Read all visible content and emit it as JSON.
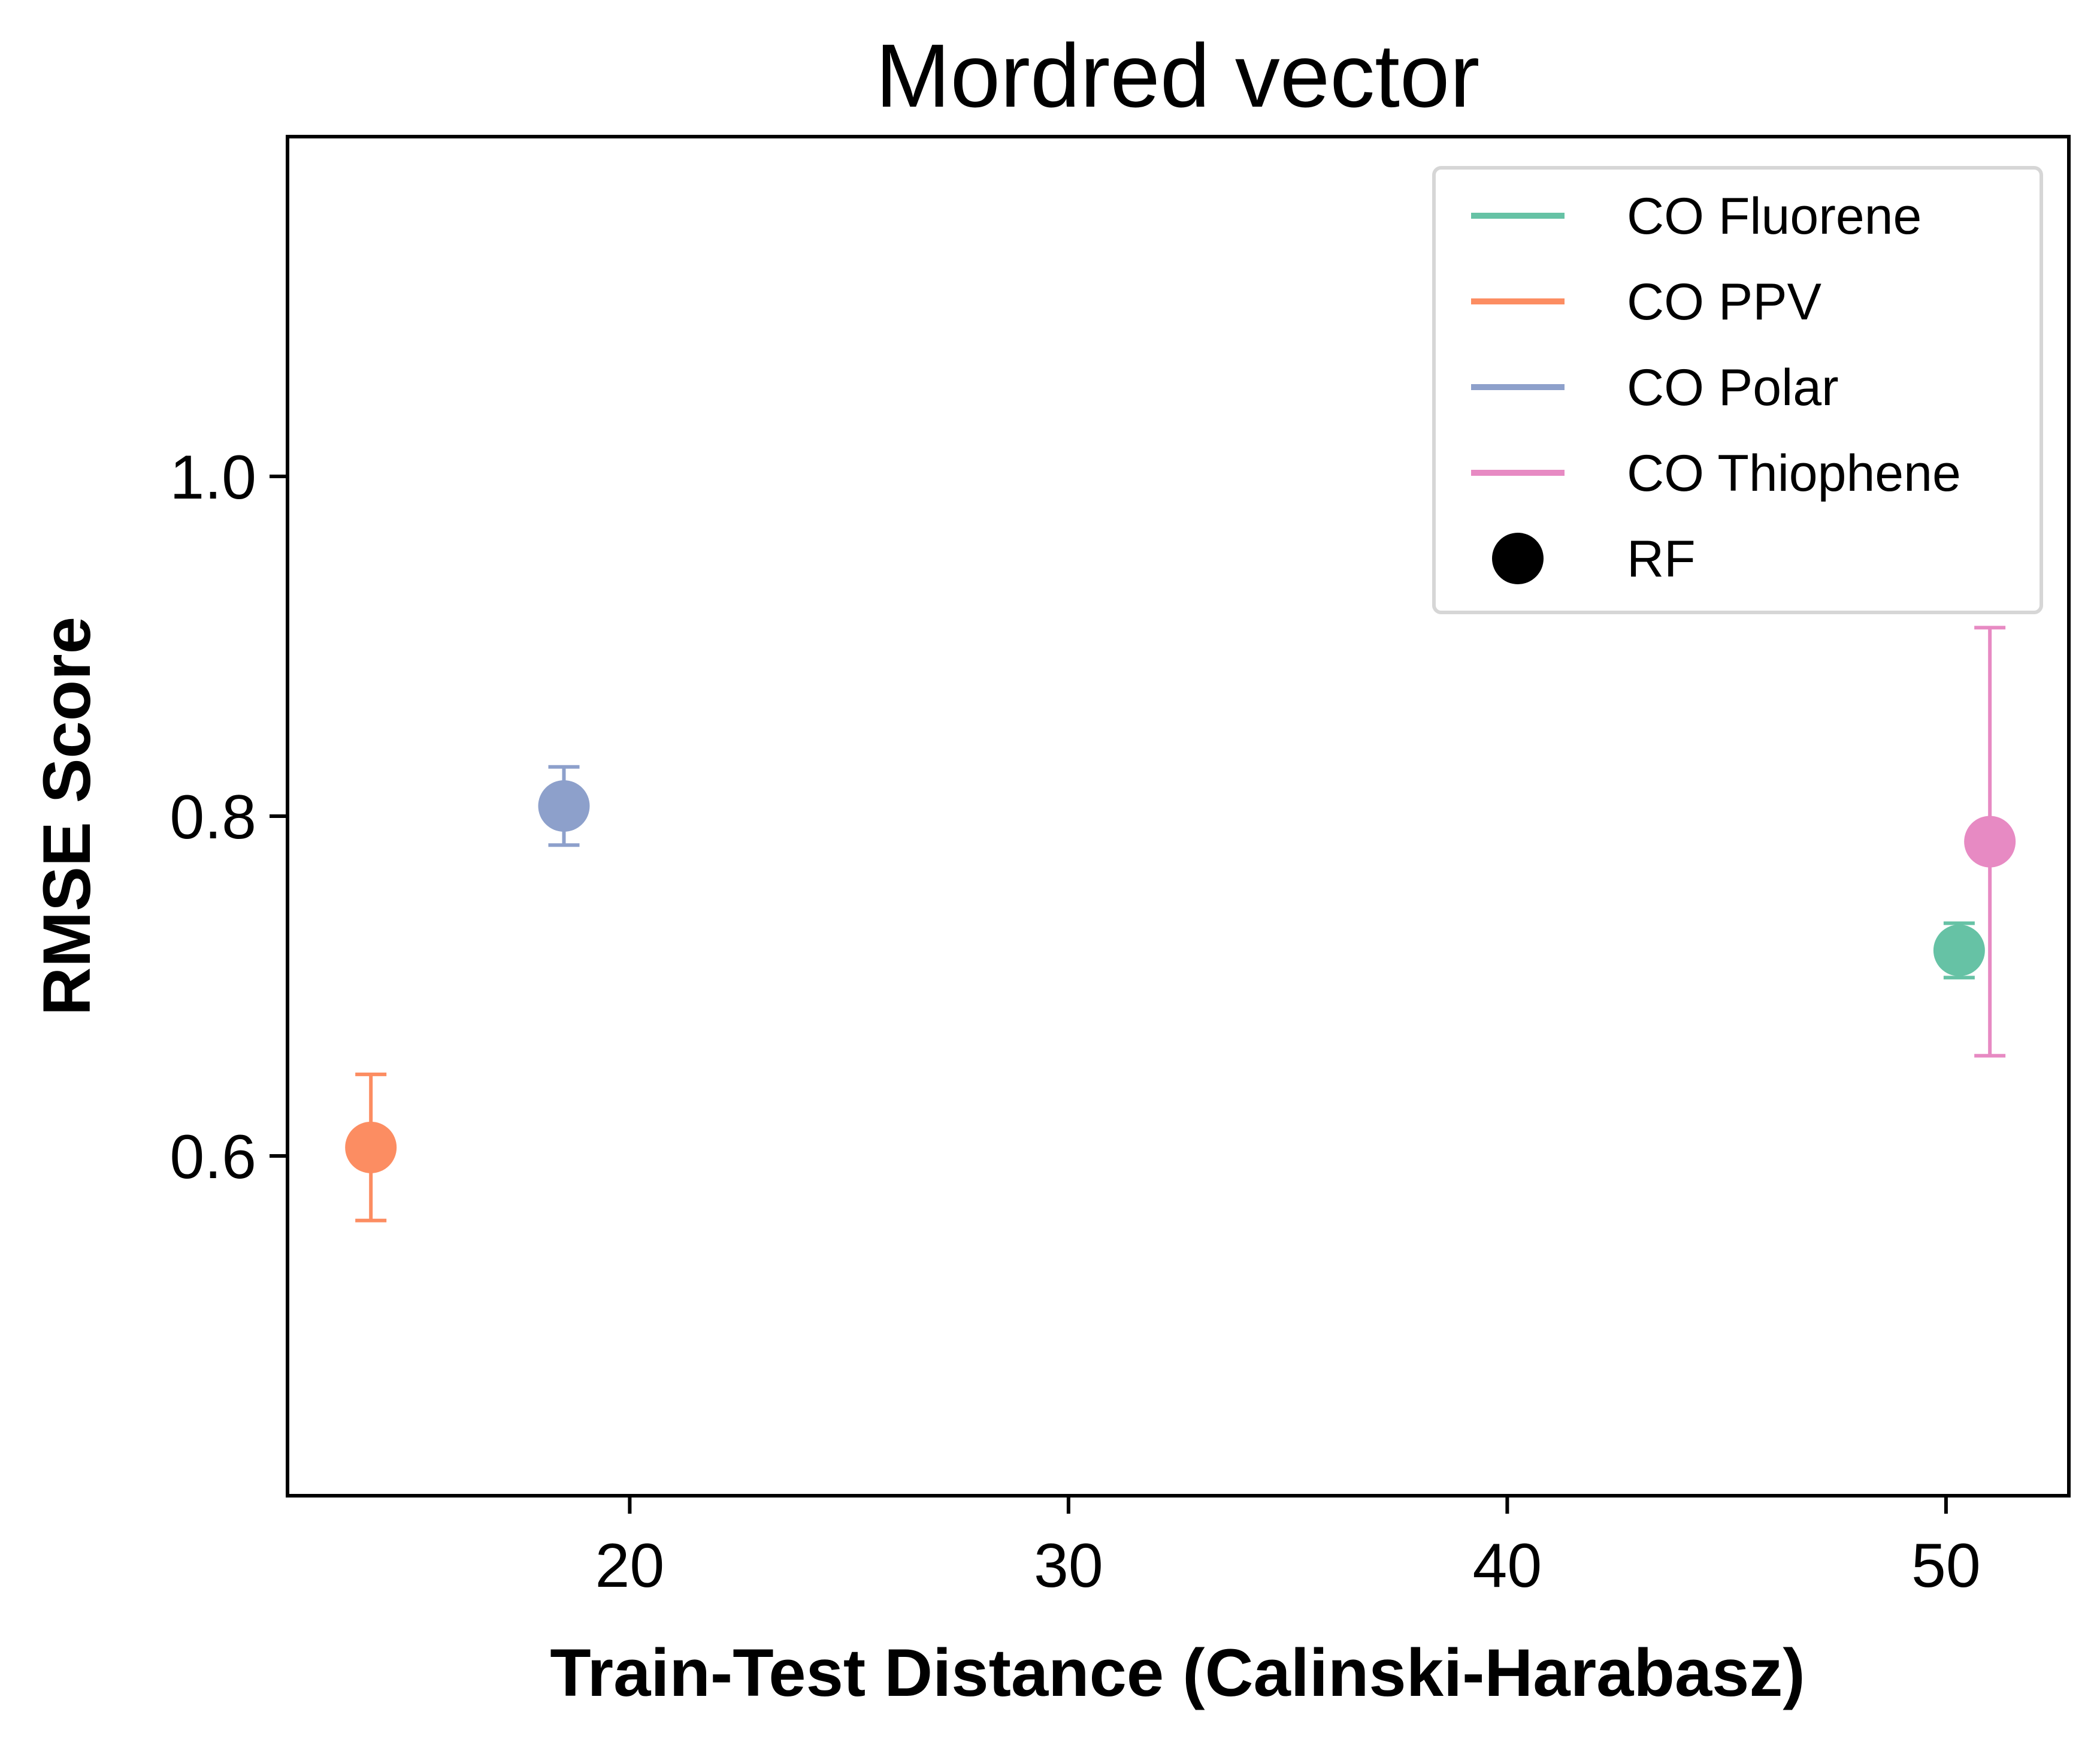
{
  "chart_data": {
    "type": "scatter",
    "title": "Mordred vector",
    "xlabel": "Train-Test Distance (Calinski-Harabasz)",
    "ylabel": "RMSE Score",
    "xlim": [
      12.2,
      52.8
    ],
    "ylim": [
      0.4,
      1.2
    ],
    "xticks": [
      20,
      30,
      40,
      50
    ],
    "yticks": [
      0.6,
      0.8,
      1.0
    ],
    "xtick_labels": [
      "20",
      "30",
      "40",
      "50"
    ],
    "ytick_labels": [
      "0.6",
      "0.8",
      "1.0"
    ],
    "grid": false,
    "legend_position": "top-right",
    "marker_legend": {
      "label": "RF",
      "color": "#000000"
    },
    "series": [
      {
        "name": "CO Fluorene",
        "color": "#66c2a5",
        "points": [
          {
            "x": 50.3,
            "y": 0.721,
            "err_low": 0.016,
            "err_high": 0.016
          }
        ]
      },
      {
        "name": "CO PPV",
        "color": "#fc8d62",
        "points": [
          {
            "x": 14.1,
            "y": 0.605,
            "err_low": 0.043,
            "err_high": 0.043
          }
        ]
      },
      {
        "name": "CO Polar",
        "color": "#8da0cb",
        "points": [
          {
            "x": 18.5,
            "y": 0.806,
            "err_low": 0.023,
            "err_high": 0.023
          }
        ]
      },
      {
        "name": "CO Thiophene",
        "color": "#e78ac3",
        "points": [
          {
            "x": 51.0,
            "y": 0.785,
            "err_low": 0.126,
            "err_high": 0.126
          }
        ]
      }
    ]
  }
}
